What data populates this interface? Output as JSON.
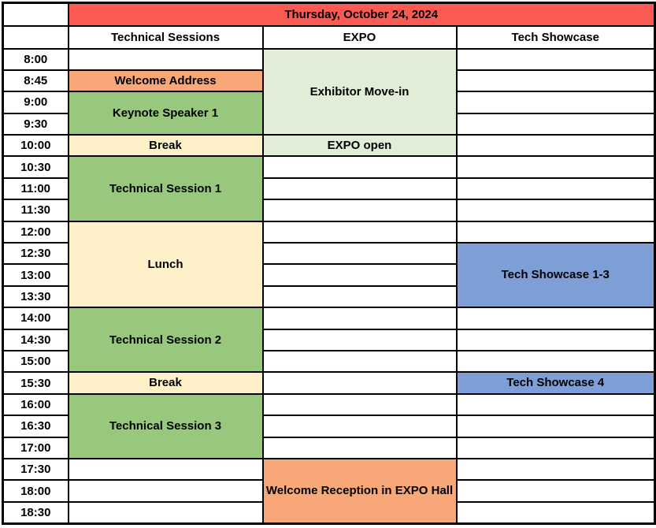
{
  "title": "Thursday, October 24, 2024",
  "columns": [
    "Technical Sessions",
    "EXPO",
    "Tech Showcase"
  ],
  "times": [
    "8:00",
    "8:45",
    "9:00",
    "9:30",
    "10:00",
    "10:30",
    "11:00",
    "11:30",
    "12:00",
    "12:30",
    "13:00",
    "13:30",
    "14:00",
    "14:30",
    "15:00",
    "15:30",
    "16:00",
    "16:30",
    "17:00",
    "17:30",
    "18:00",
    "18:30"
  ],
  "colors": {
    "header_red": "#FB5A52",
    "salmon": "#F7A778",
    "green": "#98C87E",
    "light_green": "#E0EED8",
    "cream": "#FEF1C9",
    "blue": "#7E9FD6",
    "cell_white": "#FFFFFF",
    "border_black": "#000000"
  },
  "events": [
    {
      "col": 0,
      "row": 1,
      "span": 1,
      "color": "salmon",
      "label": "Welcome Address"
    },
    {
      "col": 0,
      "row": 2,
      "span": 2,
      "color": "green",
      "label": "Keynote Speaker 1"
    },
    {
      "col": 0,
      "row": 4,
      "span": 1,
      "color": "cream",
      "label": "Break"
    },
    {
      "col": 0,
      "row": 5,
      "span": 3,
      "color": "green",
      "label": "Technical Session 1"
    },
    {
      "col": 0,
      "row": 8,
      "span": 4,
      "color": "cream",
      "label": "Lunch"
    },
    {
      "col": 0,
      "row": 12,
      "span": 3,
      "color": "green",
      "label": "Technical Session 2"
    },
    {
      "col": 0,
      "row": 15,
      "span": 1,
      "color": "cream",
      "label": "Break"
    },
    {
      "col": 0,
      "row": 16,
      "span": 3,
      "color": "green",
      "label": "Technical Session 3"
    },
    {
      "col": 1,
      "row": 0,
      "span": 4,
      "color": "light_green",
      "label": "Exhibitor Move-in"
    },
    {
      "col": 1,
      "row": 4,
      "span": 1,
      "color": "light_green",
      "label": "EXPO open"
    },
    {
      "col": 1,
      "row": 19,
      "span": 3,
      "color": "salmon",
      "label": "Welcome Reception in EXPO Hall"
    },
    {
      "col": 2,
      "row": 9,
      "span": 3,
      "color": "blue",
      "label": "Tech Showcase 1-3"
    },
    {
      "col": 2,
      "row": 15,
      "span": 1,
      "color": "blue",
      "label": "Tech Showcase 4"
    }
  ]
}
